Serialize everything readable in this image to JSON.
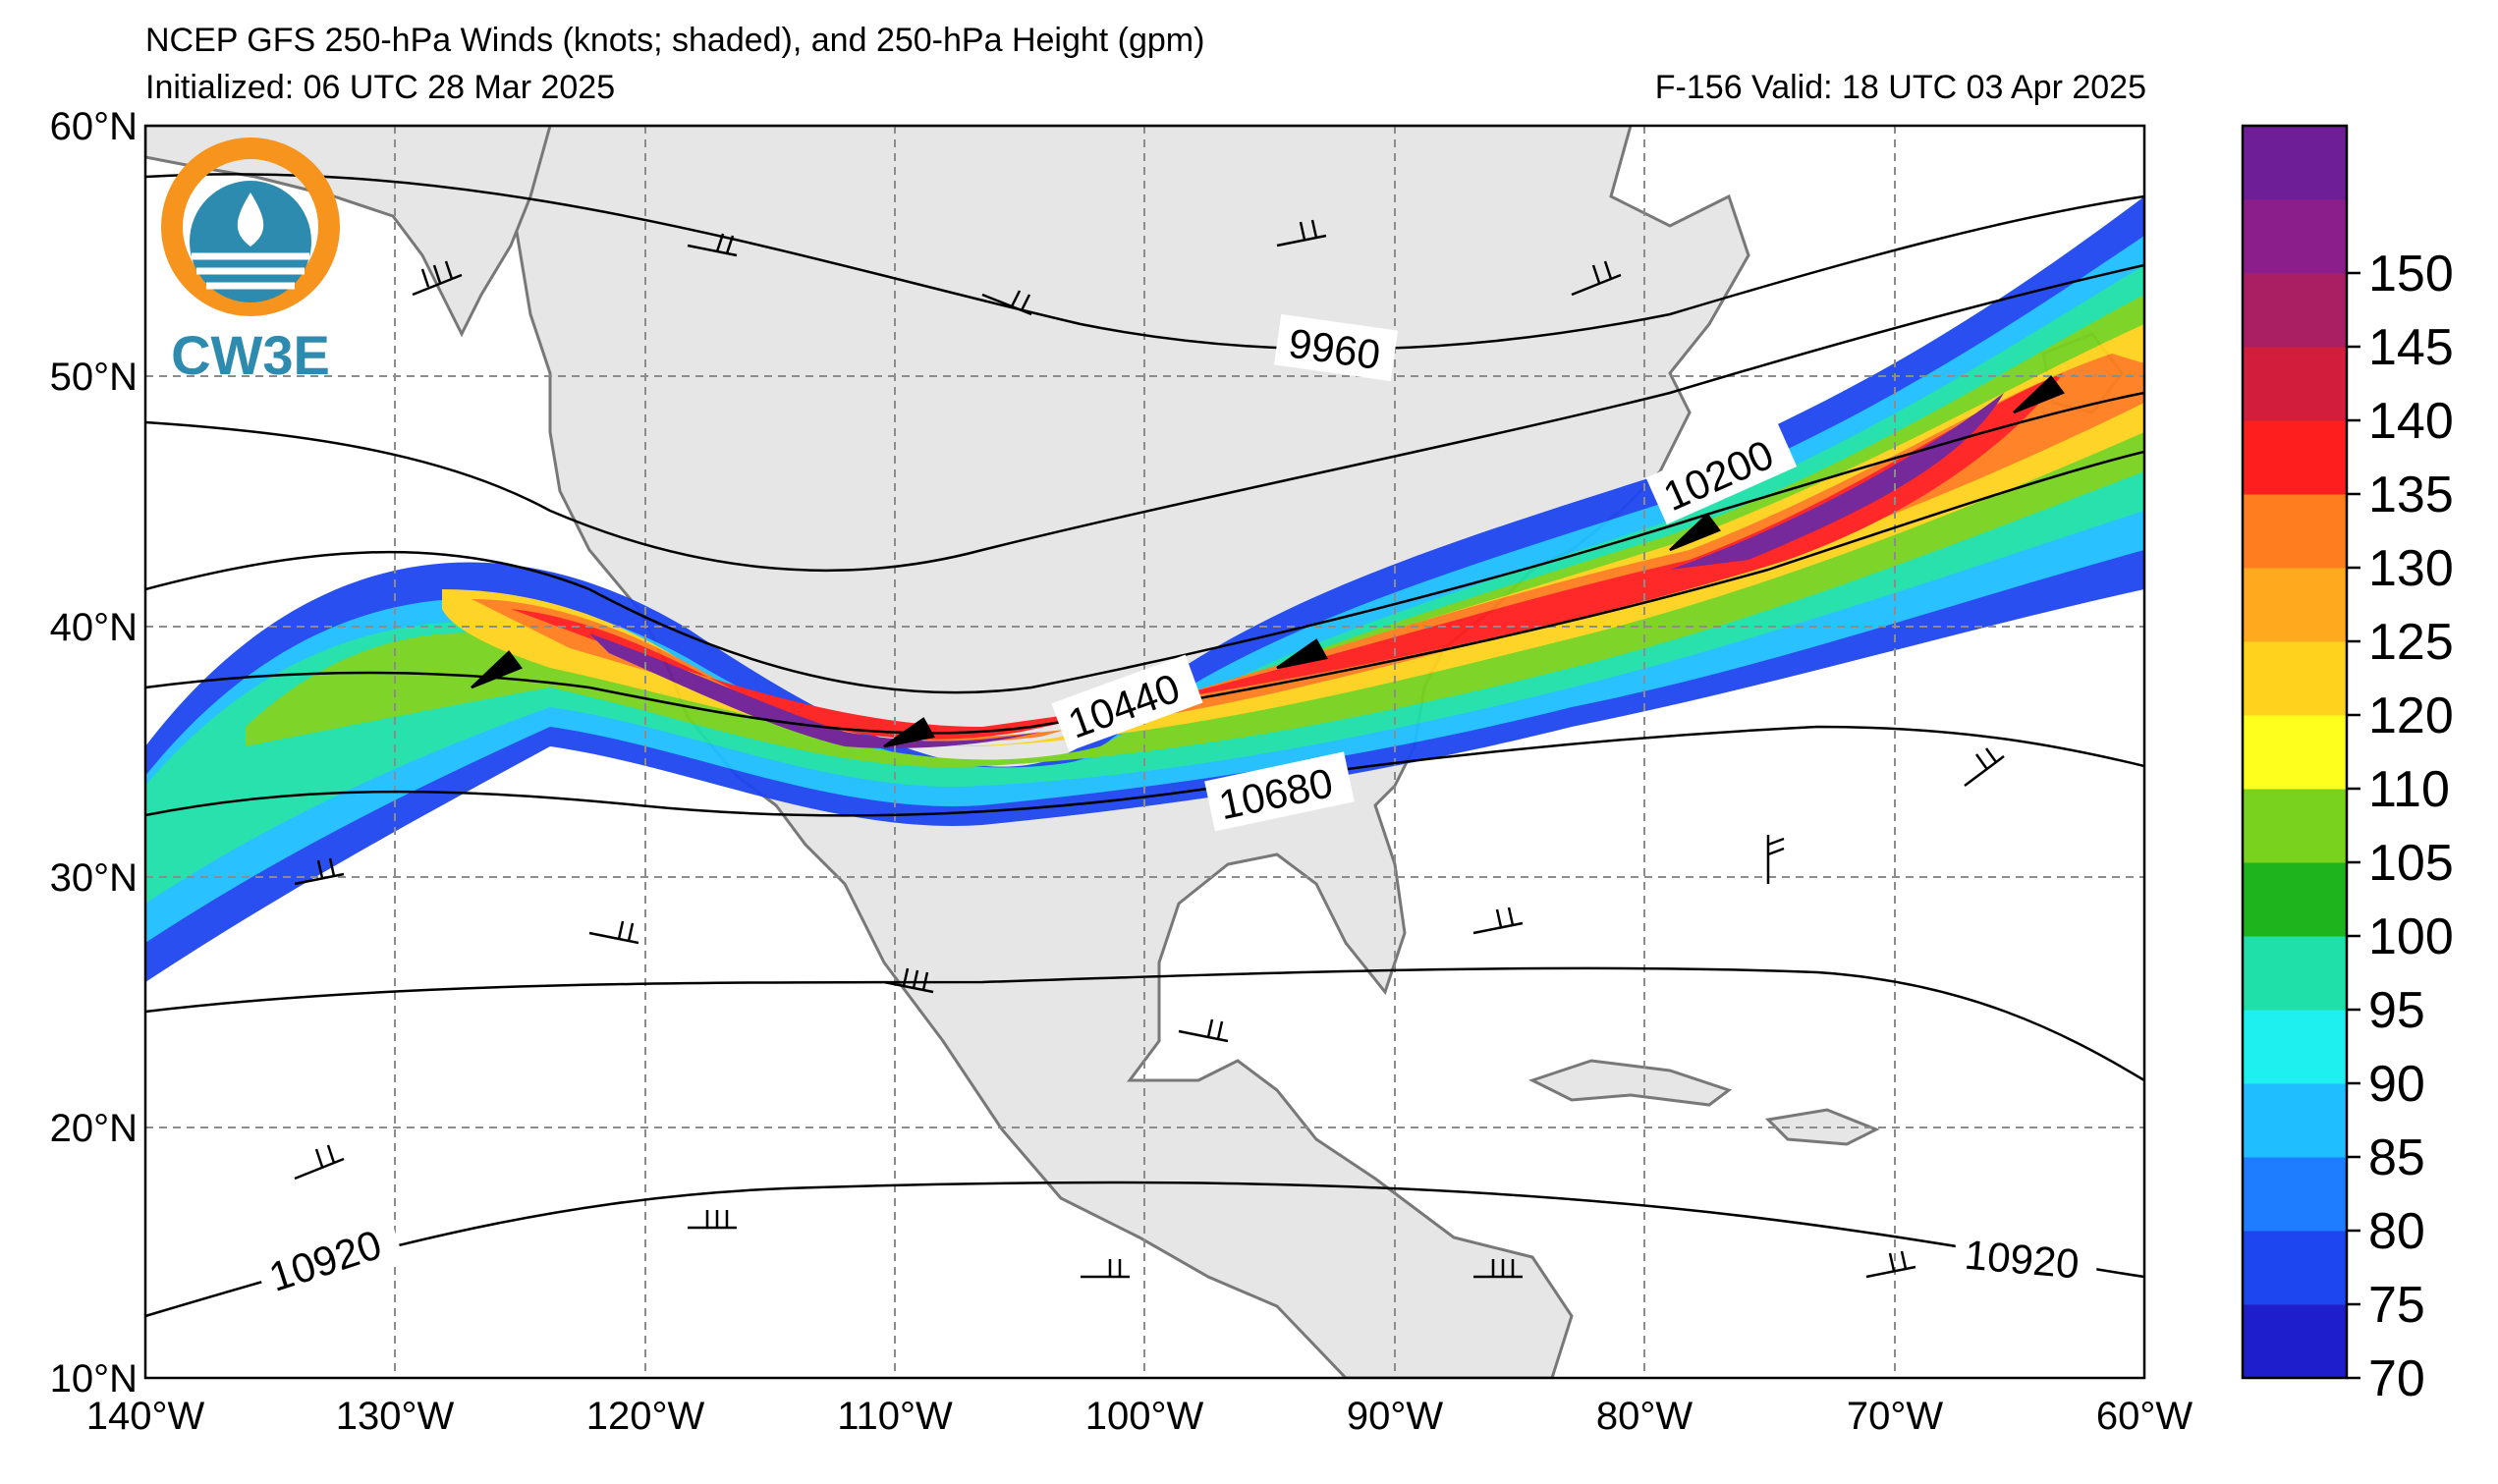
{
  "header": {
    "title": "NCEP GFS 250-hPa Winds (knots; shaded), and 250-hPa Height (gpm)",
    "init": "Initialized: 06 UTC 28 Mar 2025",
    "valid": "F-156  Valid: 18 UTC 03 Apr 2025"
  },
  "logo": {
    "text": "CW3E",
    "icon": "cw3e-logo-icon"
  },
  "axes": {
    "lat_labels": [
      "60°N",
      "50°N",
      "40°N",
      "30°N",
      "20°N",
      "10°N"
    ],
    "lon_labels": [
      "140°W",
      "130°W",
      "120°W",
      "110°W",
      "100°W",
      "90°W",
      "80°W",
      "70°W",
      "60°W"
    ],
    "lat_range": [
      10,
      60
    ],
    "lon_range": [
      -140,
      -60
    ]
  },
  "contour_labels": [
    {
      "text": "9960"
    },
    {
      "text": "10200"
    },
    {
      "text": "10440"
    },
    {
      "text": "10680"
    },
    {
      "text": "10920"
    },
    {
      "text": "10920"
    }
  ],
  "colorbar": {
    "ticks": [
      "70",
      "75",
      "80",
      "85",
      "90",
      "95",
      "100",
      "105",
      "110",
      "120",
      "125",
      "130",
      "135",
      "140",
      "145",
      "150"
    ],
    "colors": [
      "#1e1ecc",
      "#1e46f0",
      "#1e7cff",
      "#1ebeff",
      "#1ef0f0",
      "#1ee0a8",
      "#1eb41e",
      "#78d21e",
      "#ffff1e",
      "#ffd21e",
      "#ffaa1e",
      "#ff7d1e",
      "#ff1e1e",
      "#d21e3c",
      "#aa1e64",
      "#8c1e8c",
      "#6e1e96"
    ]
  },
  "colors": {
    "land": "#e6e6e6",
    "coast": "#787878",
    "grid": "#8c8c8c",
    "contour": "#000000"
  }
}
